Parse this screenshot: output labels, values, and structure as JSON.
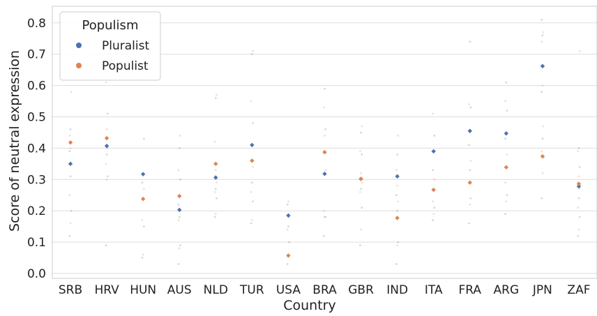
{
  "chart_data": {
    "type": "scatter",
    "title": "",
    "xlabel": "Country",
    "ylabel": "Score of neutral expression",
    "ylim": [
      0,
      0.85
    ],
    "yticks": [
      0.0,
      0.1,
      0.2,
      0.3,
      0.4,
      0.5,
      0.6,
      0.7,
      0.8
    ],
    "grid": true,
    "legend": {
      "title": "Populism",
      "placement": "top-left"
    },
    "categories": [
      "SRB",
      "HRV",
      "HUN",
      "AUS",
      "NLD",
      "TUR",
      "USA",
      "BRA",
      "GBR",
      "IND",
      "ITA",
      "FRA",
      "ARG",
      "JPN",
      "ZAF"
    ],
    "series": [
      {
        "name": "Pluralist",
        "color": "#4c72b0",
        "values": [
          0.35,
          0.407,
          0.317,
          0.203,
          0.306,
          0.41,
          0.185,
          0.318,
          0.302,
          0.31,
          0.39,
          0.455,
          0.447,
          0.662,
          0.278
        ]
      },
      {
        "name": "Populist",
        "color": "#dd8452",
        "values": [
          0.418,
          0.432,
          0.238,
          0.247,
          0.35,
          0.36,
          0.057,
          0.387,
          0.302,
          0.177,
          0.267,
          0.29,
          0.339,
          0.374,
          0.286
        ]
      }
    ],
    "individual_points": {
      "SRB": [
        0.12,
        0.16,
        0.2,
        0.25,
        0.31,
        0.35,
        0.39,
        0.4,
        0.42,
        0.44,
        0.46,
        0.58
      ],
      "HRV": [
        0.09,
        0.3,
        0.31,
        0.35,
        0.38,
        0.4,
        0.43,
        0.46,
        0.51,
        0.61
      ],
      "HUN": [
        0.05,
        0.06,
        0.15,
        0.17,
        0.24,
        0.27,
        0.29,
        0.32,
        0.43,
        0.62
      ],
      "AUS": [
        0.03,
        0.08,
        0.09,
        0.17,
        0.18,
        0.2,
        0.22,
        0.25,
        0.3,
        0.33,
        0.4,
        0.44
      ],
      "NLD": [
        0.18,
        0.19,
        0.24,
        0.26,
        0.27,
        0.29,
        0.31,
        0.33,
        0.35,
        0.42,
        0.56,
        0.57
      ],
      "TUR": [
        0.16,
        0.17,
        0.23,
        0.26,
        0.29,
        0.34,
        0.36,
        0.41,
        0.48,
        0.55,
        0.7,
        0.71
      ],
      "USA": [
        0.03,
        0.06,
        0.1,
        0.14,
        0.15,
        0.18,
        0.22,
        0.23
      ],
      "BRA": [
        0.12,
        0.18,
        0.18,
        0.2,
        0.32,
        0.33,
        0.39,
        0.44,
        0.46,
        0.53,
        0.59
      ],
      "GBR": [
        0.09,
        0.14,
        0.21,
        0.26,
        0.27,
        0.29,
        0.3,
        0.32,
        0.38,
        0.39,
        0.45,
        0.47
      ],
      "IND": [
        0.03,
        0.09,
        0.1,
        0.18,
        0.2,
        0.23,
        0.25,
        0.28,
        0.31,
        0.33,
        0.38,
        0.44
      ],
      "ITA": [
        0.17,
        0.19,
        0.21,
        0.23,
        0.27,
        0.3,
        0.33,
        0.39,
        0.44,
        0.51
      ],
      "FRA": [
        0.16,
        0.22,
        0.24,
        0.29,
        0.33,
        0.36,
        0.41,
        0.45,
        0.53,
        0.54,
        0.74
      ],
      "ARG": [
        0.19,
        0.23,
        0.25,
        0.29,
        0.34,
        0.38,
        0.43,
        0.45,
        0.52,
        0.55,
        0.61
      ],
      "JPN": [
        0.24,
        0.32,
        0.37,
        0.39,
        0.43,
        0.47,
        0.58,
        0.6,
        0.66,
        0.74,
        0.76,
        0.77,
        0.81
      ],
      "ZAF": [
        0.12,
        0.14,
        0.18,
        0.21,
        0.24,
        0.27,
        0.29,
        0.31,
        0.34,
        0.39,
        0.4,
        0.71
      ]
    }
  }
}
